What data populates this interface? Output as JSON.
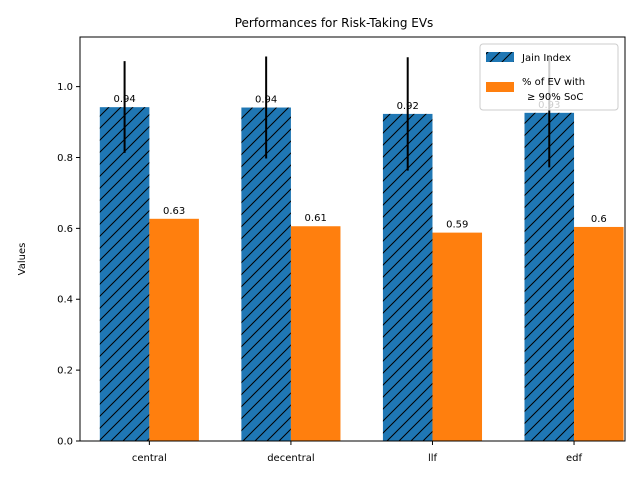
{
  "chart_data": {
    "type": "bar",
    "title": "Performances for Risk-Taking EVs",
    "xlabel": "",
    "ylabel": "Values",
    "ylim": [
      0,
      1.14
    ],
    "yticks": [
      0.0,
      0.2,
      0.4,
      0.6,
      0.8,
      1.0
    ],
    "ytick_labels": [
      "0.0",
      "0.2",
      "0.4",
      "0.6",
      "0.8",
      "1.0"
    ],
    "categories": [
      "central",
      "decentral",
      "llf",
      "edf"
    ],
    "series": [
      {
        "name": "Jain Index",
        "values": [
          0.94,
          0.94,
          0.92,
          0.93
        ],
        "bar_values": [
          0.942,
          0.941,
          0.923,
          0.926
        ],
        "error_low": [
          0.813,
          0.797,
          0.763,
          0.772
        ],
        "error_high": [
          1.072,
          1.085,
          1.083,
          1.082
        ],
        "color": "#1f77b4",
        "hatch": "diagonal"
      },
      {
        "name": "% of EV with\n≥ 90% SoC",
        "values": [
          0.63,
          0.61,
          0.59,
          0.6
        ],
        "bar_values": [
          0.627,
          0.606,
          0.588,
          0.604
        ],
        "color": "#ff7f0e",
        "hatch": "none"
      }
    ],
    "legend_position": "top-right",
    "grid": false
  }
}
